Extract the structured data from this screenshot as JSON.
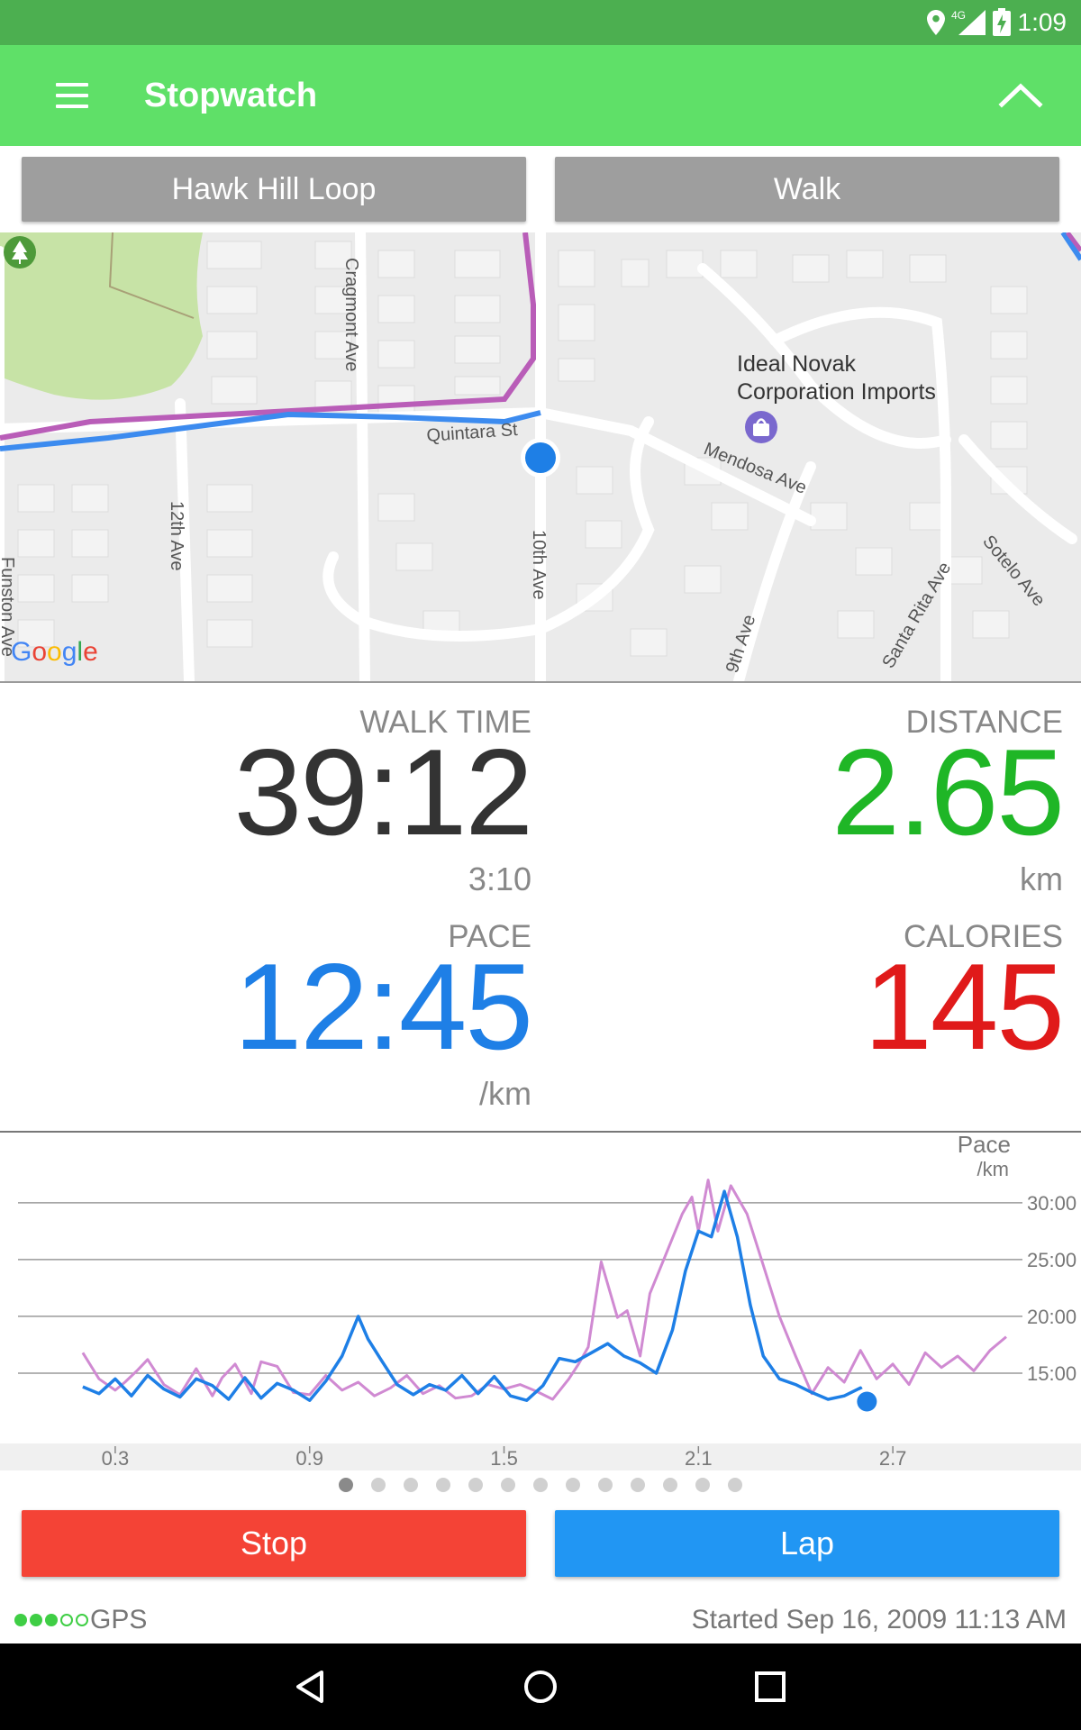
{
  "status_bar": {
    "time": "1:09",
    "network": "4G",
    "icons": [
      "location-icon",
      "signal-icon",
      "battery-charging-icon"
    ]
  },
  "app_bar": {
    "title": "Stopwatch",
    "icons": [
      "menu-icon",
      "chevron-up-icon"
    ],
    "background": "#5fe068"
  },
  "selectors": {
    "route": "Hawk Hill Loop",
    "activity": "Walk"
  },
  "map": {
    "streets": [
      "Cragmont Ave",
      "Quintara St",
      "12th Ave",
      "10th Ave",
      "Mendosa Ave",
      "9th Ave",
      "Santa Rita Ave",
      "Sotelo Ave",
      "Funston Ave"
    ],
    "poi": "Ideal Novak Corporation Imports",
    "attribution": "Google",
    "icons": [
      "park-icon",
      "shopping-bag-icon",
      "current-location-marker"
    ]
  },
  "stats": {
    "time": {
      "label": "WALK TIME",
      "value": "39:12",
      "sub": "3:10",
      "color": "#333333"
    },
    "distance": {
      "label": "DISTANCE",
      "value": "2.65",
      "unit": "km",
      "color": "#1fb626"
    },
    "pace": {
      "label": "PACE",
      "value": "12:45",
      "unit": "/km",
      "color": "#1e7fe6"
    },
    "calories": {
      "label": "CALORIES",
      "value": "145",
      "color": "#e01a1a"
    }
  },
  "chart_data": {
    "type": "line",
    "title": "",
    "ylabel": "Pace",
    "yunit": "/km",
    "xlim": [
      0.0,
      3.1
    ],
    "ylim": [
      10,
      33
    ],
    "yticks": [
      "15:00",
      "20:00",
      "25:00",
      "30:00"
    ],
    "ytick_values": [
      15,
      20,
      25,
      30
    ],
    "xticks": [
      "0.3",
      "0.9",
      "1.5",
      "2.1",
      "2.7"
    ],
    "xtick_values": [
      0.3,
      0.9,
      1.5,
      2.1,
      2.7
    ],
    "series": [
      {
        "name": "",
        "color": "#d08ad2",
        "x": [
          0.2,
          0.25,
          0.3,
          0.33,
          0.37,
          0.4,
          0.45,
          0.5,
          0.55,
          0.6,
          0.63,
          0.67,
          0.72,
          0.75,
          0.8,
          0.85,
          0.9,
          0.95,
          1.0,
          1.05,
          1.1,
          1.15,
          1.2,
          1.25,
          1.3,
          1.35,
          1.4,
          1.45,
          1.5,
          1.55,
          1.6,
          1.65,
          1.7,
          1.73,
          1.76,
          1.8,
          1.85,
          1.88,
          1.92,
          1.95,
          2.0,
          2.05,
          2.08,
          2.1,
          2.13,
          2.16,
          2.2,
          2.25,
          2.3,
          2.35,
          2.4,
          2.45,
          2.5,
          2.55,
          2.6,
          2.65,
          2.7,
          2.75,
          2.8,
          2.85,
          2.9,
          2.95,
          3.0,
          3.05
        ],
        "values": [
          16.8,
          14.5,
          13.5,
          14.2,
          15.3,
          16.2,
          14.0,
          13.1,
          15.4,
          13.0,
          14.6,
          15.8,
          13.2,
          16.0,
          15.6,
          13.3,
          13.1,
          14.8,
          13.5,
          14.2,
          13.0,
          13.7,
          14.8,
          13.2,
          13.9,
          12.8,
          13.0,
          14.0,
          13.6,
          14.0,
          13.4,
          12.7,
          14.5,
          15.8,
          17.3,
          24.8,
          19.9,
          20.5,
          16.5,
          22.0,
          25.5,
          29.0,
          30.5,
          27.5,
          32.0,
          27.5,
          31.5,
          29.0,
          24.5,
          20.0,
          16.5,
          13.2,
          15.5,
          14.2,
          17.0,
          14.5,
          15.8,
          14.0,
          16.8,
          15.5,
          16.5,
          15.2,
          17.0,
          18.2
        ]
      },
      {
        "name": "",
        "color": "#1e7fe6",
        "x": [
          0.2,
          0.25,
          0.3,
          0.35,
          0.4,
          0.45,
          0.5,
          0.55,
          0.6,
          0.65,
          0.7,
          0.75,
          0.8,
          0.85,
          0.9,
          0.95,
          1.0,
          1.05,
          1.08,
          1.12,
          1.17,
          1.22,
          1.27,
          1.32,
          1.37,
          1.42,
          1.47,
          1.52,
          1.57,
          1.62,
          1.67,
          1.72,
          1.77,
          1.82,
          1.87,
          1.92,
          1.97,
          2.02,
          2.06,
          2.1,
          2.14,
          2.18,
          2.22,
          2.26,
          2.3,
          2.35,
          2.4,
          2.45,
          2.5,
          2.55,
          2.6,
          2.62
        ],
        "values": [
          13.8,
          13.2,
          14.5,
          13.0,
          14.8,
          13.6,
          12.9,
          14.5,
          13.9,
          12.7,
          14.6,
          12.8,
          14.1,
          13.5,
          12.6,
          14.3,
          16.5,
          20.0,
          18.0,
          16.2,
          14.0,
          13.1,
          14.0,
          13.5,
          14.8,
          13.2,
          14.7,
          13.0,
          12.6,
          13.9,
          16.3,
          16.0,
          16.8,
          17.6,
          16.5,
          15.9,
          15.0,
          18.8,
          24.0,
          27.5,
          27.0,
          31.0,
          27.0,
          21.0,
          16.5,
          14.5,
          14.0,
          13.3,
          12.7,
          13.0,
          13.7,
          12.5
        ]
      }
    ],
    "current_point": {
      "x": 2.62,
      "value": 12.5
    }
  },
  "pager": {
    "count": 13,
    "active": 0
  },
  "buttons": {
    "stop": "Stop",
    "lap": "Lap",
    "stop_color": "#f44336",
    "lap_color": "#2196f3"
  },
  "footer": {
    "gps_label": "GPS",
    "gps_strength": 3,
    "gps_max": 5,
    "started": "Started Sep 16, 2009 11:13 AM"
  },
  "nav_bar": {
    "icons": [
      "back-icon",
      "home-icon",
      "recents-icon"
    ]
  }
}
